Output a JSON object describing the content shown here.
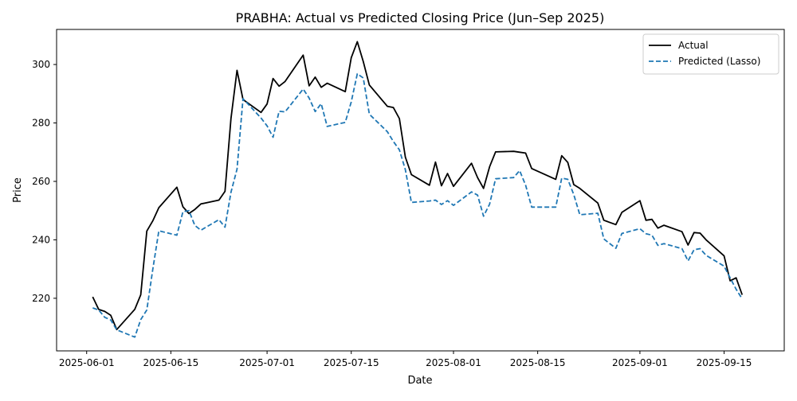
{
  "chart_data": {
    "type": "line",
    "title": "PRABHA: Actual vs Predicted Closing Price (Jun–Sep 2025)",
    "xlabel": "Date",
    "ylabel": "Price",
    "xlim": [
      "2025-05-27",
      "2025-09-25"
    ],
    "ylim": [
      202,
      312
    ],
    "grid": false,
    "legend_position": "top-right",
    "x_ticks": [
      "2025-06-01",
      "2025-06-15",
      "2025-07-01",
      "2025-07-15",
      "2025-08-01",
      "2025-08-15",
      "2025-09-01",
      "2025-09-15"
    ],
    "y_ticks": [
      220,
      240,
      260,
      280,
      300
    ],
    "x": [
      "2025-06-02",
      "2025-06-03",
      "2025-06-04",
      "2025-06-05",
      "2025-06-06",
      "2025-06-09",
      "2025-06-10",
      "2025-06-11",
      "2025-06-12",
      "2025-06-13",
      "2025-06-16",
      "2025-06-17",
      "2025-06-18",
      "2025-06-19",
      "2025-06-20",
      "2025-06-23",
      "2025-06-24",
      "2025-06-25",
      "2025-06-26",
      "2025-06-27",
      "2025-06-30",
      "2025-07-01",
      "2025-07-02",
      "2025-07-03",
      "2025-07-04",
      "2025-07-07",
      "2025-07-08",
      "2025-07-09",
      "2025-07-10",
      "2025-07-11",
      "2025-07-14",
      "2025-07-15",
      "2025-07-16",
      "2025-07-17",
      "2025-07-18",
      "2025-07-21",
      "2025-07-22",
      "2025-07-23",
      "2025-07-24",
      "2025-07-25",
      "2025-07-28",
      "2025-07-29",
      "2025-07-30",
      "2025-07-31",
      "2025-08-01",
      "2025-08-04",
      "2025-08-05",
      "2025-08-06",
      "2025-08-07",
      "2025-08-08",
      "2025-08-11",
      "2025-08-12",
      "2025-08-13",
      "2025-08-14",
      "2025-08-18",
      "2025-08-19",
      "2025-08-20",
      "2025-08-21",
      "2025-08-22",
      "2025-08-25",
      "2025-08-26",
      "2025-08-28",
      "2025-08-29",
      "2025-09-01",
      "2025-09-02",
      "2025-09-03",
      "2025-09-04",
      "2025-09-05",
      "2025-09-08",
      "2025-09-09",
      "2025-09-10",
      "2025-09-11",
      "2025-09-12",
      "2025-09-15",
      "2025-09-16",
      "2025-09-17",
      "2025-09-18"
    ],
    "series": [
      {
        "name": "Actual",
        "color": "#000000",
        "style": "solid",
        "values": [
          220.5,
          216.2,
          215.5,
          214.2,
          209.3,
          216.2,
          221.2,
          243.0,
          246.5,
          251.0,
          258.0,
          251.3,
          249.0,
          250.4,
          252.3,
          253.6,
          256.6,
          281.5,
          298.0,
          288.0,
          283.6,
          286.5,
          295.2,
          292.6,
          294.2,
          303.2,
          292.7,
          295.7,
          292.2,
          293.6,
          290.7,
          302.3,
          307.8,
          301.0,
          293.0,
          285.7,
          285.3,
          281.5,
          268.3,
          262.3,
          258.7,
          266.6,
          258.5,
          262.7,
          258.3,
          266.2,
          261.3,
          257.6,
          265.0,
          270.1,
          270.3,
          270.0,
          269.7,
          264.4,
          260.7,
          268.8,
          266.5,
          258.9,
          257.6,
          252.6,
          246.7,
          245.2,
          249.4,
          253.4,
          246.7,
          247.0,
          244.0,
          245.0,
          242.8,
          238.2,
          242.5,
          242.3,
          240.0,
          234.5,
          226.0,
          227.0,
          221.2
        ]
      },
      {
        "name": "Predicted (Lasso)",
        "color": "#1f77b4",
        "style": "dashed",
        "values": [
          216.7,
          216.0,
          213.5,
          212.6,
          209.2,
          206.7,
          212.7,
          216.0,
          229.9,
          243.1,
          241.6,
          249.6,
          250.0,
          244.9,
          243.3,
          246.9,
          244.3,
          256.3,
          264.2,
          288.3,
          281.7,
          279.0,
          275.1,
          284.0,
          283.8,
          291.6,
          288.5,
          283.9,
          286.6,
          278.8,
          280.2,
          287.2,
          296.8,
          295.4,
          283.0,
          277.0,
          273.7,
          270.8,
          264.0,
          252.8,
          253.3,
          253.6,
          252.1,
          253.4,
          251.8,
          256.4,
          255.3,
          248.1,
          252.2,
          260.9,
          261.3,
          263.7,
          258.7,
          251.2,
          251.2,
          261.1,
          260.7,
          255.5,
          248.6,
          249.1,
          240.3,
          237.1,
          242.2,
          243.8,
          242.1,
          241.6,
          238.1,
          238.7,
          237.0,
          232.8,
          236.6,
          237.0,
          234.7,
          231.0,
          227.0,
          223.1,
          219.8
        ]
      }
    ]
  }
}
